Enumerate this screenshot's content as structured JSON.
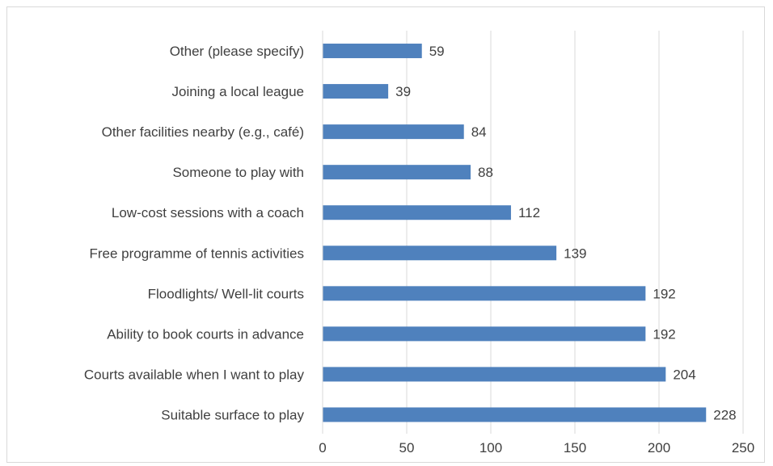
{
  "chart_data": {
    "type": "bar",
    "orientation": "horizontal",
    "categories": [
      "Other (please specify)",
      "Joining a local league",
      "Other facilities nearby (e.g., café)",
      "Someone to play with",
      "Low-cost sessions with a coach",
      "Free programme of tennis activities",
      "Floodlights/ Well-lit courts",
      "Ability to book courts in advance",
      "Courts available when I want to play",
      "Suitable surface to play"
    ],
    "values": [
      59,
      39,
      84,
      88,
      112,
      139,
      192,
      192,
      204,
      228
    ],
    "xlim": [
      0,
      250
    ],
    "xticks": [
      0,
      50,
      100,
      150,
      200,
      250
    ],
    "grid": "vertical",
    "legend": "none",
    "data_labels": true,
    "colors": {
      "bar": "#4f81bd",
      "grid": "#d9d9d9",
      "text": "#404040"
    }
  }
}
